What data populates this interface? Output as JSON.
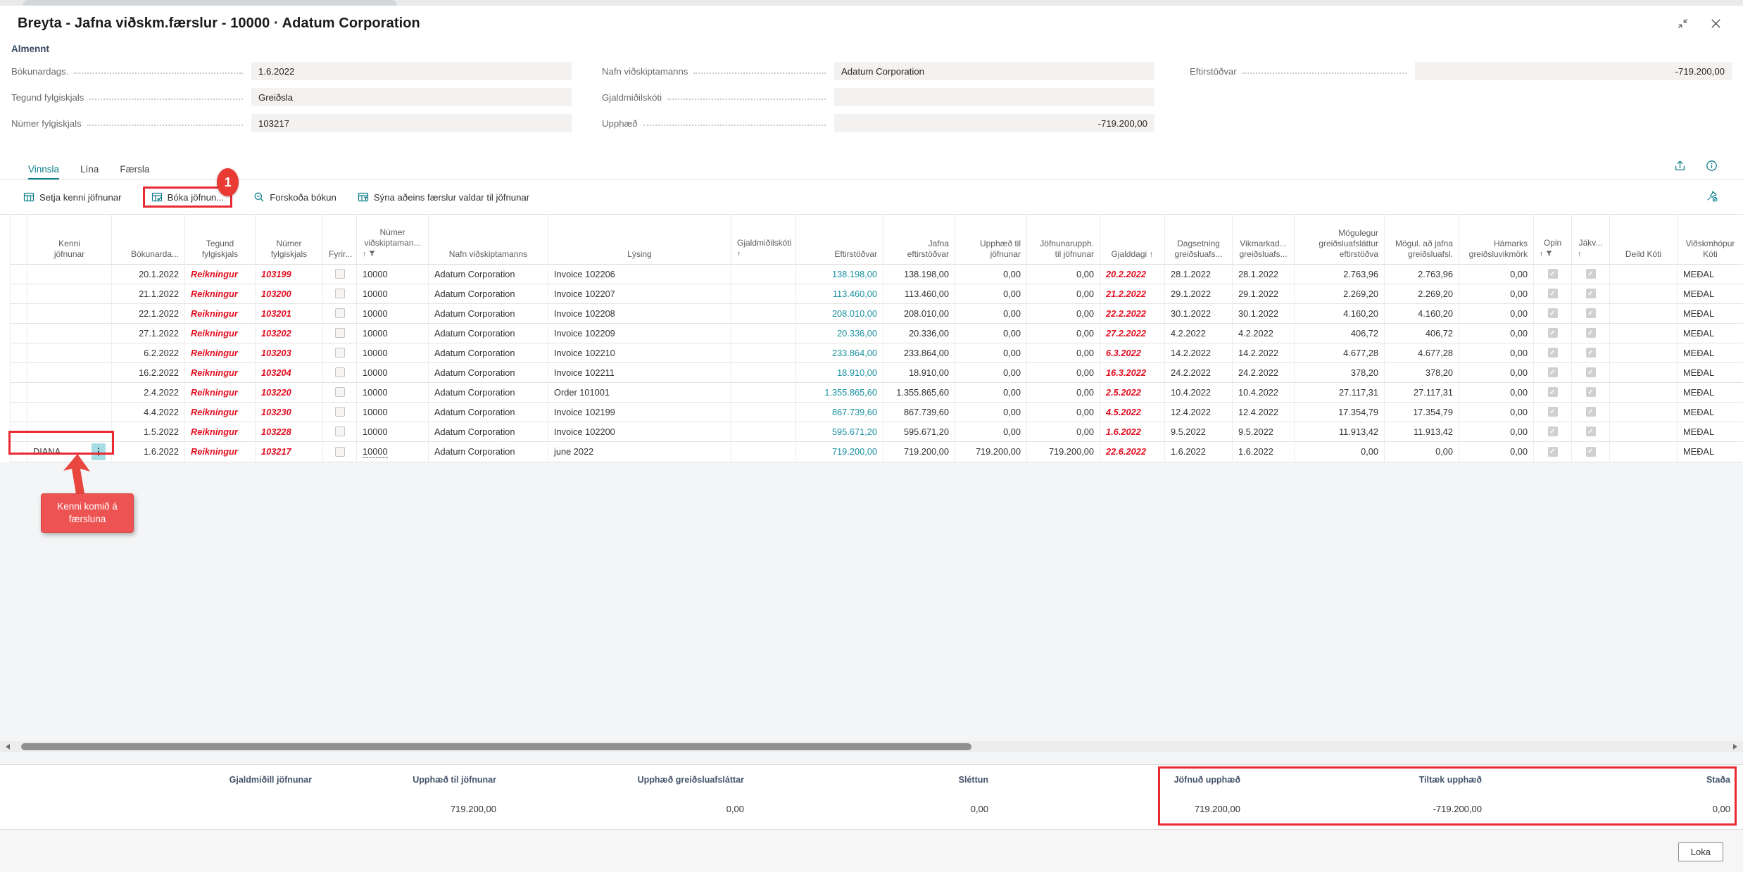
{
  "page": {
    "title": "Breyta - Jafna viðskm.færslur - 10000 · Adatum Corporation",
    "close_label": "Loka"
  },
  "general": {
    "section": "Almennt",
    "col1": [
      {
        "label": "Bókunardags.",
        "value": "1.6.2022",
        "align": "left"
      },
      {
        "label": "Tegund fylgiskjals",
        "value": "Greiðsla",
        "align": "left"
      },
      {
        "label": "Númer fylgiskjals",
        "value": "103217",
        "align": "left"
      }
    ],
    "col2": [
      {
        "label": "Nafn viðskiptamanns",
        "value": "Adatum Corporation",
        "align": "left"
      },
      {
        "label": "Gjaldmiðilskóti",
        "value": "",
        "align": "left"
      },
      {
        "label": "Upphæð",
        "value": "-719.200,00",
        "align": "right"
      }
    ],
    "col3": [
      {
        "label": "Eftirstöðvar",
        "value": "-719.200,00",
        "align": "right"
      }
    ]
  },
  "tabs": [
    {
      "label": "Vinnsla",
      "active": true
    },
    {
      "label": "Lína",
      "active": false
    },
    {
      "label": "Færsla",
      "active": false
    }
  ],
  "toolbar": [
    {
      "label": "Setja kenni jöfnunar",
      "icon": "set-applies-id-icon",
      "annotated": false
    },
    {
      "label": "Bóka jöfnun...",
      "icon": "post-application-icon",
      "annotated": true
    },
    {
      "label": "Forskoða bókun",
      "icon": "preview-posting-icon",
      "annotated": false
    },
    {
      "label": "Sýna aðeins færslur valdar til jöfnunar",
      "icon": "show-selected-icon",
      "annotated": false
    }
  ],
  "annotation": {
    "badge": "1",
    "callout": "Kenni komið á færsluna"
  },
  "grid": {
    "columns": [
      {
        "key": "sel",
        "label": ""
      },
      {
        "key": "kenni",
        "label": "Kenni\njöfnunar"
      },
      {
        "key": "bok",
        "label": "Bókunarda..."
      },
      {
        "key": "teg",
        "label": "Tegund\nfylgiskjals"
      },
      {
        "key": "num",
        "label": "Númer\nfylgiskjals"
      },
      {
        "key": "fyr",
        "label": "Fyrir..."
      },
      {
        "key": "cust",
        "label": "Númer\nviðskiptaman...",
        "sort": true,
        "filter": true
      },
      {
        "key": "nafn",
        "label": "Nafn viðskiptamanns"
      },
      {
        "key": "lys",
        "label": "Lýsing"
      },
      {
        "key": "gjm",
        "label": "Gjaldmiðilskóti",
        "sort": true
      },
      {
        "key": "eft",
        "label": "Eftirstöðvar"
      },
      {
        "key": "jafna",
        "label": "Jafna\neftirstöðvar"
      },
      {
        "key": "upph",
        "label": "Upphæð til\njöfnunar"
      },
      {
        "key": "jofn",
        "label": "Jöfnunarupph.\ntil jöfnunar"
      },
      {
        "key": "gjald",
        "label": "Gjalddagi",
        "sort": true,
        "inline": true
      },
      {
        "key": "dags",
        "label": "Dagsetning\ngreiðsluafs..."
      },
      {
        "key": "vikm",
        "label": "Vikmarkad...\ngreiðsluafs..."
      },
      {
        "key": "mog",
        "label": "Mögulegur\ngreiðsluafsláttur\neftirstöðva"
      },
      {
        "key": "mogj",
        "label": "Mögul. að jafna\ngreiðsluafsl."
      },
      {
        "key": "ham",
        "label": "Hámarks\ngreiðsluvikmörk"
      },
      {
        "key": "opin",
        "label": "Opin",
        "sort": true,
        "filter": true
      },
      {
        "key": "jakv",
        "label": "Jákv...",
        "sort": true
      },
      {
        "key": "deild",
        "label": "Deild Kóti"
      },
      {
        "key": "vids",
        "label": "Viðskmhópur\nKóti"
      }
    ],
    "rows": [
      {
        "kenni": "",
        "bok": "20.1.2022",
        "teg": "Reikningur",
        "num": "103199",
        "fyr": false,
        "cust": "10000",
        "nafn": "Adatum Corporation",
        "lys": "Invoice 102206",
        "gjm": "",
        "eft": "138.198,00",
        "jafna": "138.198,00",
        "upph": "0,00",
        "jofn": "0,00",
        "gjald": "20.2.2022",
        "dags": "28.1.2022",
        "vikm": "28.1.2022",
        "mog": "2.763,96",
        "mogj": "2.763,96",
        "ham": "0,00",
        "opin": true,
        "jakv": true,
        "deild": "",
        "vids": "MEÐAL"
      },
      {
        "kenni": "",
        "bok": "21.1.2022",
        "teg": "Reikningur",
        "num": "103200",
        "fyr": false,
        "cust": "10000",
        "nafn": "Adatum Corporation",
        "lys": "Invoice 102207",
        "gjm": "",
        "eft": "113.460,00",
        "jafna": "113.460,00",
        "upph": "0,00",
        "jofn": "0,00",
        "gjald": "21.2.2022",
        "dags": "29.1.2022",
        "vikm": "29.1.2022",
        "mog": "2.269,20",
        "mogj": "2.269,20",
        "ham": "0,00",
        "opin": true,
        "jakv": true,
        "deild": "",
        "vids": "MEÐAL"
      },
      {
        "kenni": "",
        "bok": "22.1.2022",
        "teg": "Reikningur",
        "num": "103201",
        "fyr": false,
        "cust": "10000",
        "nafn": "Adatum Corporation",
        "lys": "Invoice 102208",
        "gjm": "",
        "eft": "208.010,00",
        "jafna": "208.010,00",
        "upph": "0,00",
        "jofn": "0,00",
        "gjald": "22.2.2022",
        "dags": "30.1.2022",
        "vikm": "30.1.2022",
        "mog": "4.160,20",
        "mogj": "4.160,20",
        "ham": "0,00",
        "opin": true,
        "jakv": true,
        "deild": "",
        "vids": "MEÐAL"
      },
      {
        "kenni": "",
        "bok": "27.1.2022",
        "teg": "Reikningur",
        "num": "103202",
        "fyr": false,
        "cust": "10000",
        "nafn": "Adatum Corporation",
        "lys": "Invoice 102209",
        "gjm": "",
        "eft": "20.336,00",
        "jafna": "20.336,00",
        "upph": "0,00",
        "jofn": "0,00",
        "gjald": "27.2.2022",
        "dags": "4.2.2022",
        "vikm": "4.2.2022",
        "mog": "406,72",
        "mogj": "406,72",
        "ham": "0,00",
        "opin": true,
        "jakv": true,
        "deild": "",
        "vids": "MEÐAL"
      },
      {
        "kenni": "",
        "bok": "6.2.2022",
        "teg": "Reikningur",
        "num": "103203",
        "fyr": false,
        "cust": "10000",
        "nafn": "Adatum Corporation",
        "lys": "Invoice 102210",
        "gjm": "",
        "eft": "233.864,00",
        "jafna": "233.864,00",
        "upph": "0,00",
        "jofn": "0,00",
        "gjald": "6.3.2022",
        "dags": "14.2.2022",
        "vikm": "14.2.2022",
        "mog": "4.677,28",
        "mogj": "4.677,28",
        "ham": "0,00",
        "opin": true,
        "jakv": true,
        "deild": "",
        "vids": "MEÐAL"
      },
      {
        "kenni": "",
        "bok": "16.2.2022",
        "teg": "Reikningur",
        "num": "103204",
        "fyr": false,
        "cust": "10000",
        "nafn": "Adatum Corporation",
        "lys": "Invoice 102211",
        "gjm": "",
        "eft": "18.910,00",
        "jafna": "18.910,00",
        "upph": "0,00",
        "jofn": "0,00",
        "gjald": "16.3.2022",
        "dags": "24.2.2022",
        "vikm": "24.2.2022",
        "mog": "378,20",
        "mogj": "378,20",
        "ham": "0,00",
        "opin": true,
        "jakv": true,
        "deild": "",
        "vids": "MEÐAL"
      },
      {
        "kenni": "",
        "bok": "2.4.2022",
        "teg": "Reikningur",
        "num": "103220",
        "fyr": false,
        "cust": "10000",
        "nafn": "Adatum Corporation",
        "lys": "Order 101001",
        "gjm": "",
        "eft": "1.355.865,60",
        "jafna": "1.355.865,60",
        "upph": "0,00",
        "jofn": "0,00",
        "gjald": "2.5.2022",
        "dags": "10.4.2022",
        "vikm": "10.4.2022",
        "mog": "27.117,31",
        "mogj": "27.117,31",
        "ham": "0,00",
        "opin": true,
        "jakv": true,
        "deild": "",
        "vids": "MEÐAL"
      },
      {
        "kenni": "",
        "bok": "4.4.2022",
        "teg": "Reikningur",
        "num": "103230",
        "fyr": false,
        "cust": "10000",
        "nafn": "Adatum Corporation",
        "lys": "Invoice 102199",
        "gjm": "",
        "eft": "867.739,60",
        "jafna": "867.739,60",
        "upph": "0,00",
        "jofn": "0,00",
        "gjald": "4.5.2022",
        "dags": "12.4.2022",
        "vikm": "12.4.2022",
        "mog": "17.354,79",
        "mogj": "17.354,79",
        "ham": "0,00",
        "opin": true,
        "jakv": true,
        "deild": "",
        "vids": "MEÐAL"
      },
      {
        "kenni": "",
        "bok": "1.5.2022",
        "teg": "Reikningur",
        "num": "103228",
        "fyr": false,
        "cust": "10000",
        "nafn": "Adatum Corporation",
        "lys": "Invoice 102200",
        "gjm": "",
        "eft": "595.671,20",
        "jafna": "595.671,20",
        "upph": "0,00",
        "jofn": "0,00",
        "gjald": "1.6.2022",
        "dags": "9.5.2022",
        "vikm": "9.5.2022",
        "mog": "11.913,42",
        "mogj": "11.913,42",
        "ham": "0,00",
        "opin": true,
        "jakv": true,
        "deild": "",
        "vids": "MEÐAL"
      },
      {
        "active": true,
        "kenni": "DIANA",
        "bok": "1.6.2022",
        "teg": "Reikningur",
        "num": "103217",
        "fyr": false,
        "cust": "10000",
        "nafn": "Adatum Corporation",
        "lys": "june 2022",
        "gjm": "",
        "eft": "719.200,00",
        "jafna": "719.200,00",
        "upph": "719.200,00",
        "jofn": "719.200,00",
        "gjald": "22.6.2022",
        "dags": "1.6.2022",
        "vikm": "1.6.2022",
        "mog": "0,00",
        "mogj": "0,00",
        "ham": "0,00",
        "opin": true,
        "jakv": true,
        "deild": "",
        "vids": "MEÐAL"
      }
    ]
  },
  "footer": {
    "totals": [
      {
        "label": "Gjaldmiðill jöfnunar",
        "value": ""
      },
      {
        "label": "Upphæð til jöfnunar",
        "value": "719.200,00"
      },
      {
        "label": "Upphæð greiðsluafsláttar",
        "value": "0,00"
      },
      {
        "label": "Sléttun",
        "value": "0,00"
      },
      {
        "label": "Jöfnuð upphæð",
        "value": "719.200,00",
        "highlighted": true
      },
      {
        "label": "Tiltæk upphæð",
        "value": "-719.200,00",
        "highlighted": true
      },
      {
        "label": "Staða",
        "value": "0,00",
        "highlighted": true
      }
    ]
  }
}
